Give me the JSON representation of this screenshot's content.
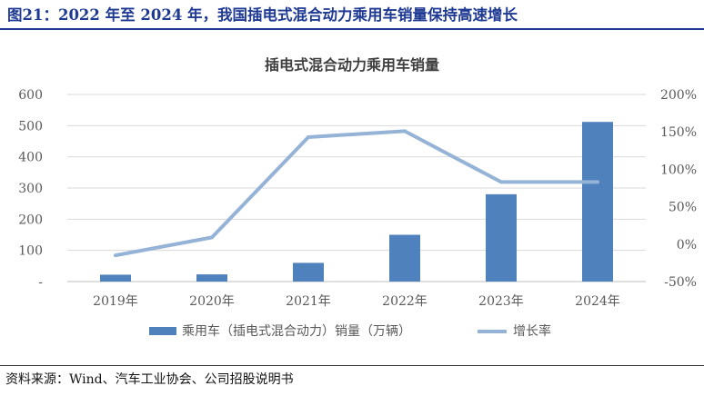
{
  "figure_title": "图21：2022 年至 2024 年，我国插电式混合动力乘用车销量保持高速增长",
  "source_note": "资料来源：Wind、汽车工业协会、公司招股说明书",
  "colors": {
    "title_blue": "#1f3a93",
    "bar": "#4f81bd",
    "line": "#95b3d7",
    "grid": "#d9d9d9",
    "axis_text": "#595959"
  },
  "chart_data": {
    "type": "bar",
    "title": "插电式混合动力乘用车销量",
    "categories": [
      "2019年",
      "2020年",
      "2021年",
      "2022年",
      "2023年",
      "2024年"
    ],
    "series": [
      {
        "name": "乘用车（插电式混合动力）销量（万辆）",
        "type": "bar",
        "axis": "left",
        "values": [
          22,
          23,
          60,
          150,
          280,
          512
        ]
      },
      {
        "name": "增长率",
        "type": "line",
        "axis": "right",
        "values": [
          -15,
          9,
          143,
          151,
          83,
          83
        ]
      }
    ],
    "y_left": {
      "min": 0,
      "max": 600,
      "ticks": [
        "600",
        "500",
        "400",
        "300",
        "200",
        "100",
        "-"
      ]
    },
    "y_right": {
      "min": -50,
      "max": 200,
      "ticks": [
        "200%",
        "150%",
        "100%",
        "50%",
        "0%",
        "-50%"
      ]
    },
    "grid": true,
    "legend_position": "bottom"
  }
}
